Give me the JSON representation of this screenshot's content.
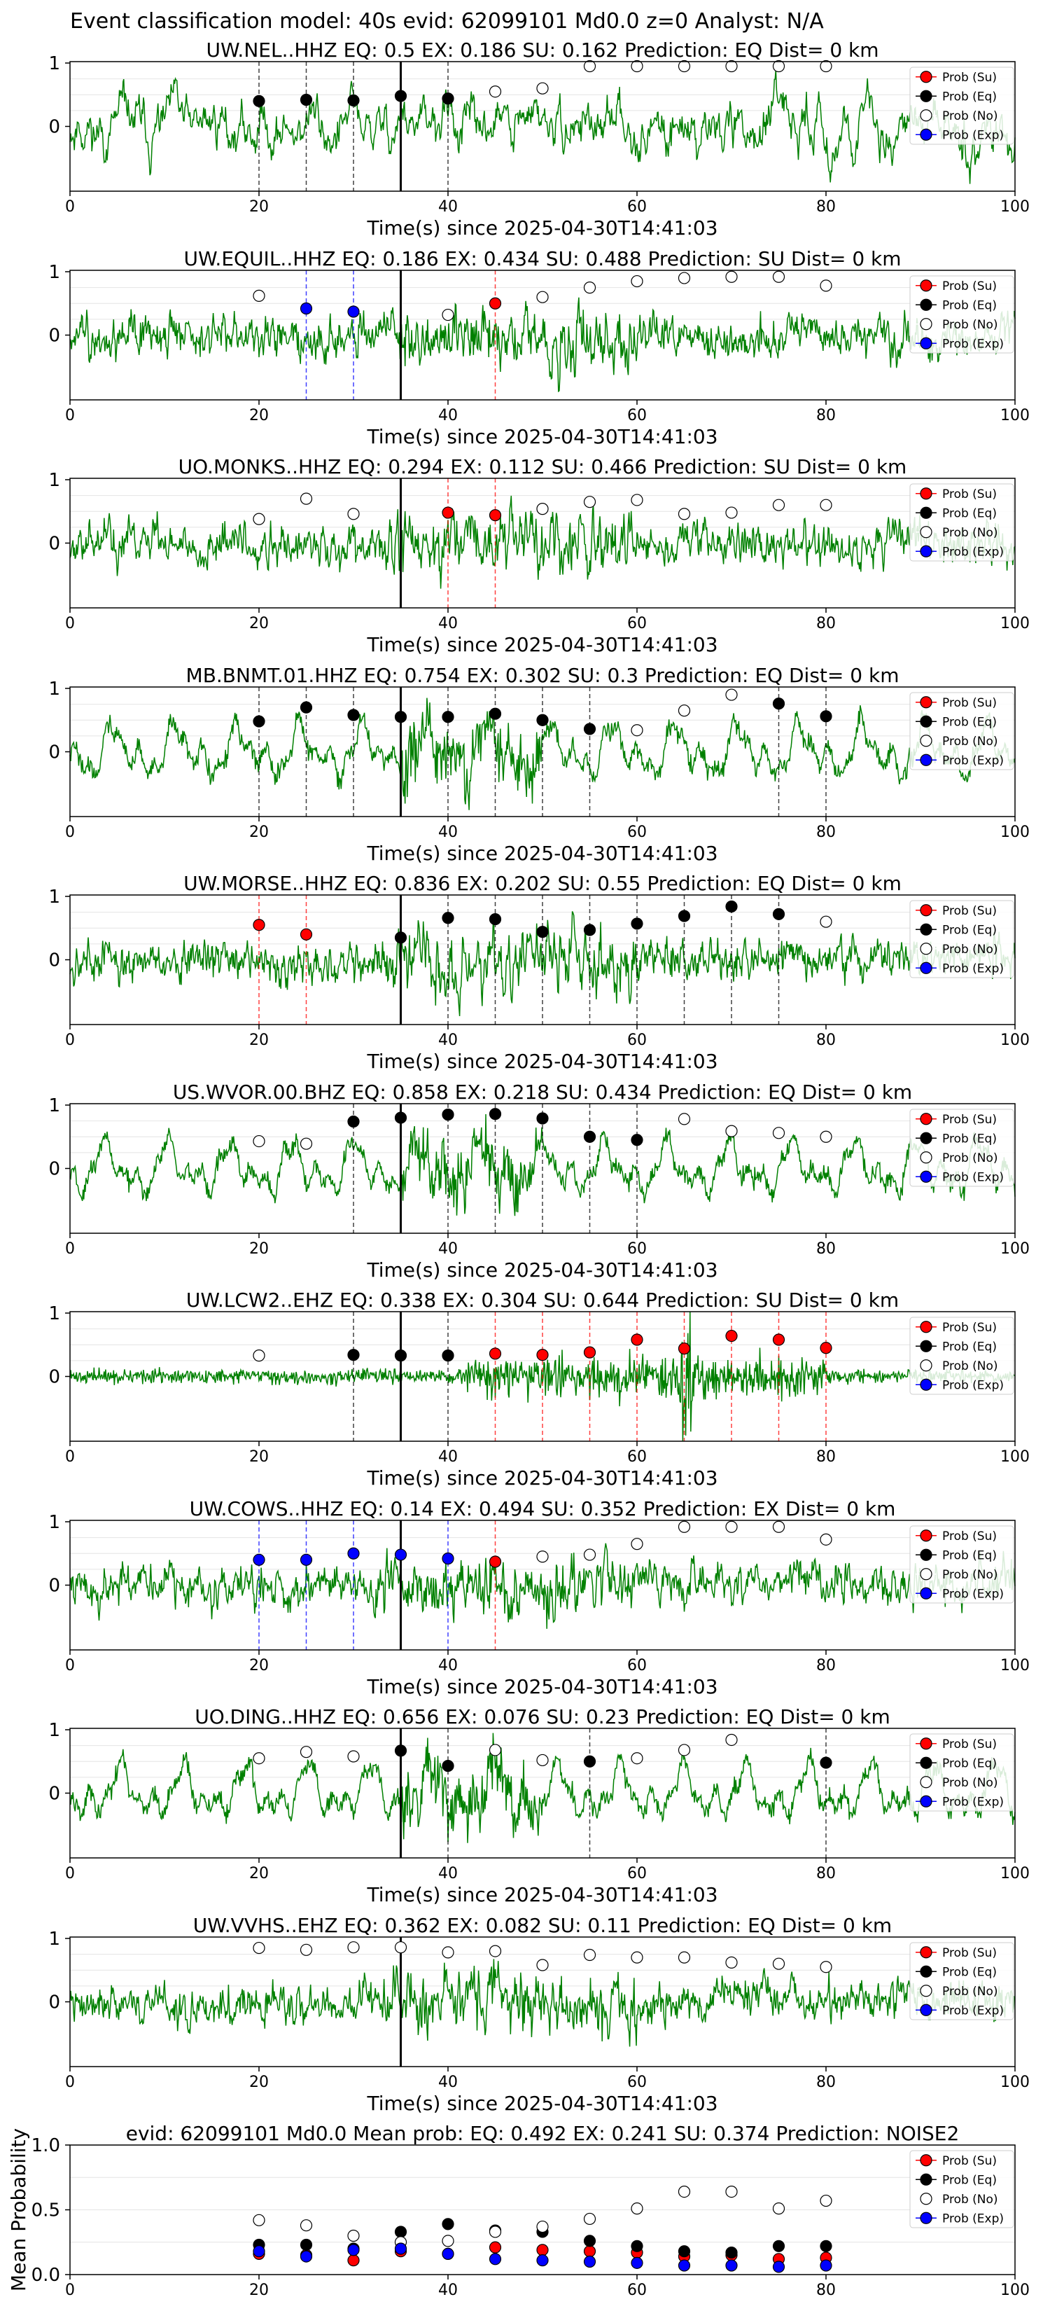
{
  "suptitle": "Event classification model: 40s evid: 62099101 Md0.0 z=0 Analyst: N/A",
  "xlabel": "Time(s) since 2025-04-30T14:41:03",
  "legend": [
    "Prob (Su)",
    "Prob (Eq)",
    "Prob (No)",
    "Prob (Exp)"
  ],
  "colors": {
    "su": "#ff0000",
    "eq": "#000000",
    "no": "#ffffff",
    "exp": "#0000ff",
    "trace": "#008000",
    "pick": "#000000"
  },
  "chart_data": [
    {
      "type": "line",
      "station": "UW.NEL..HHZ",
      "title": "UW.NEL..HHZ   EQ: 0.5   EX: 0.186   SU: 0.162   Prediction: EQ    Dist= 0 km",
      "xlim": [
        0,
        100
      ],
      "yticks": [
        "1",
        "0"
      ],
      "xticks": [
        "0",
        "20",
        "40",
        "60",
        "80",
        "100"
      ],
      "pick_time": 35,
      "style": "mixed",
      "seed": 11,
      "points": [
        [
          20,
          "eq",
          0.4
        ],
        [
          25,
          "eq",
          0.42
        ],
        [
          30,
          "eq",
          0.41
        ],
        [
          35,
          "eq",
          0.48
        ],
        [
          40,
          "eq",
          0.44
        ],
        [
          45,
          "no",
          0.55
        ],
        [
          50,
          "no",
          0.6
        ],
        [
          55,
          "no",
          0.95
        ],
        [
          60,
          "no",
          0.95
        ],
        [
          65,
          "no",
          0.95
        ],
        [
          70,
          "no",
          0.95
        ],
        [
          75,
          "no",
          0.95
        ],
        [
          80,
          "no",
          0.95
        ]
      ]
    },
    {
      "type": "line",
      "station": "UW.EQUIL..HHZ",
      "title": "UW.EQUIL..HHZ   EQ: 0.186  EX: 0.434  SU: 0.488   Prediction: SU    Dist= 0 km",
      "xlim": [
        0,
        100
      ],
      "yticks": [
        "1",
        "0"
      ],
      "xticks": [
        "0",
        "20",
        "40",
        "60",
        "80",
        "100"
      ],
      "pick_time": 35,
      "style": "noise",
      "seed": 23,
      "points": [
        [
          20,
          "no",
          0.62
        ],
        [
          25,
          "exp",
          0.42
        ],
        [
          30,
          "exp",
          0.37
        ],
        [
          40,
          "no",
          0.32
        ],
        [
          45,
          "su",
          0.5
        ],
        [
          50,
          "no",
          0.6
        ],
        [
          55,
          "no",
          0.75
        ],
        [
          60,
          "no",
          0.85
        ],
        [
          65,
          "no",
          0.9
        ],
        [
          70,
          "no",
          0.92
        ],
        [
          75,
          "no",
          0.92
        ],
        [
          80,
          "no",
          0.78
        ]
      ]
    },
    {
      "type": "line",
      "station": "UO.MONKS..HHZ",
      "title": "UO.MONKS..HHZ   EQ: 0.294  EX: 0.112  SU: 0.466   Prediction: SU    Dist= 0 km",
      "xlim": [
        0,
        100
      ],
      "yticks": [
        "1",
        "0"
      ],
      "xticks": [
        "0",
        "20",
        "40",
        "60",
        "80",
        "100"
      ],
      "pick_time": 35,
      "style": "noise",
      "seed": 37,
      "points": [
        [
          20,
          "no",
          0.38
        ],
        [
          25,
          "no",
          0.7
        ],
        [
          30,
          "no",
          0.46
        ],
        [
          40,
          "su",
          0.48
        ],
        [
          45,
          "su",
          0.44
        ],
        [
          50,
          "no",
          0.54
        ],
        [
          55,
          "no",
          0.65
        ],
        [
          60,
          "no",
          0.68
        ],
        [
          65,
          "no",
          0.46
        ],
        [
          70,
          "no",
          0.48
        ],
        [
          75,
          "no",
          0.6
        ],
        [
          80,
          "no",
          0.6
        ]
      ]
    },
    {
      "type": "line",
      "station": "MB.BNMT.01.HHZ",
      "title": "MB.BNMT.01.HHZ   EQ: 0.754  EX: 0.302  SU: 0.3   Prediction: EQ    Dist= 0 km",
      "xlim": [
        0,
        100
      ],
      "yticks": [
        "1",
        "0"
      ],
      "xticks": [
        "0",
        "20",
        "40",
        "60",
        "80",
        "100"
      ],
      "pick_time": 35,
      "style": "wave",
      "seed": 41,
      "points": [
        [
          20,
          "eq",
          0.48
        ],
        [
          25,
          "eq",
          0.7
        ],
        [
          30,
          "eq",
          0.58
        ],
        [
          35,
          "eq",
          0.55
        ],
        [
          40,
          "eq",
          0.55
        ],
        [
          45,
          "eq",
          0.6
        ],
        [
          50,
          "eq",
          0.5
        ],
        [
          55,
          "eq",
          0.36
        ],
        [
          60,
          "no",
          0.34
        ],
        [
          65,
          "no",
          0.65
        ],
        [
          70,
          "no",
          0.9
        ],
        [
          75,
          "eq",
          0.76
        ],
        [
          80,
          "eq",
          0.56
        ]
      ]
    },
    {
      "type": "line",
      "station": "UW.MORSE..HHZ",
      "title": "UW.MORSE..HHZ   EQ: 0.836  EX: 0.202  SU: 0.55   Prediction: EQ    Dist= 0 km",
      "xlim": [
        0,
        100
      ],
      "yticks": [
        "1",
        "0"
      ],
      "xticks": [
        "0",
        "20",
        "40",
        "60",
        "80",
        "100"
      ],
      "pick_time": 35,
      "style": "noise",
      "seed": 53,
      "points": [
        [
          20,
          "su",
          0.55
        ],
        [
          25,
          "su",
          0.4
        ],
        [
          35,
          "eq",
          0.35
        ],
        [
          40,
          "eq",
          0.66
        ],
        [
          45,
          "eq",
          0.64
        ],
        [
          50,
          "eq",
          0.44
        ],
        [
          55,
          "eq",
          0.47
        ],
        [
          60,
          "eq",
          0.57
        ],
        [
          65,
          "eq",
          0.69
        ],
        [
          70,
          "eq",
          0.84
        ],
        [
          75,
          "eq",
          0.72
        ],
        [
          80,
          "no",
          0.6
        ]
      ]
    },
    {
      "type": "line",
      "station": "US.WVOR.00.BHZ",
      "title": "US.WVOR.00.BHZ   EQ: 0.858  EX: 0.218  SU: 0.434   Prediction: EQ    Dist= 0 km",
      "xlim": [
        0,
        100
      ],
      "yticks": [
        "1",
        "0"
      ],
      "xticks": [
        "0",
        "20",
        "40",
        "60",
        "80",
        "100"
      ],
      "pick_time": 35,
      "style": "wave",
      "seed": 67,
      "points": [
        [
          20,
          "no",
          0.43
        ],
        [
          25,
          "no",
          0.39
        ],
        [
          30,
          "eq",
          0.74
        ],
        [
          35,
          "eq",
          0.8
        ],
        [
          40,
          "eq",
          0.85
        ],
        [
          45,
          "eq",
          0.86
        ],
        [
          50,
          "eq",
          0.79
        ],
        [
          55,
          "eq",
          0.5
        ],
        [
          60,
          "eq",
          0.45
        ],
        [
          65,
          "no",
          0.78
        ],
        [
          70,
          "no",
          0.59
        ],
        [
          75,
          "no",
          0.56
        ],
        [
          80,
          "no",
          0.5
        ]
      ]
    },
    {
      "type": "line",
      "station": "UW.LCW2..EHZ",
      "title": "UW.LCW2..EHZ   EQ: 0.338  EX: 0.304  SU: 0.644   Prediction: SU    Dist= 0 km",
      "xlim": [
        0,
        100
      ],
      "yticks": [
        "1",
        "0"
      ],
      "xticks": [
        "0",
        "20",
        "40",
        "60",
        "80",
        "100"
      ],
      "pick_time": 35,
      "style": "burst",
      "seed": 71,
      "points": [
        [
          20,
          "no",
          0.33
        ],
        [
          30,
          "eq",
          0.34
        ],
        [
          35,
          "eq",
          0.33
        ],
        [
          40,
          "eq",
          0.33
        ],
        [
          45,
          "su",
          0.36
        ],
        [
          50,
          "su",
          0.34
        ],
        [
          55,
          "su",
          0.38
        ],
        [
          60,
          "su",
          0.58
        ],
        [
          65,
          "su",
          0.44
        ],
        [
          70,
          "su",
          0.64
        ],
        [
          75,
          "su",
          0.58
        ],
        [
          80,
          "su",
          0.45
        ]
      ]
    },
    {
      "type": "line",
      "station": "UW.COWS..HHZ",
      "title": "UW.COWS..HHZ   EQ: 0.14  EX: 0.494  SU: 0.352   Prediction: EX    Dist= 0 km",
      "xlim": [
        0,
        100
      ],
      "yticks": [
        "1",
        "0"
      ],
      "xticks": [
        "0",
        "20",
        "40",
        "60",
        "80",
        "100"
      ],
      "pick_time": 35,
      "style": "noise",
      "seed": 83,
      "points": [
        [
          20,
          "exp",
          0.4
        ],
        [
          25,
          "exp",
          0.4
        ],
        [
          30,
          "exp",
          0.5
        ],
        [
          35,
          "exp",
          0.48
        ],
        [
          40,
          "exp",
          0.42
        ],
        [
          45,
          "su",
          0.37
        ],
        [
          50,
          "no",
          0.45
        ],
        [
          55,
          "no",
          0.48
        ],
        [
          60,
          "no",
          0.65
        ],
        [
          65,
          "no",
          0.92
        ],
        [
          70,
          "no",
          0.92
        ],
        [
          75,
          "no",
          0.92
        ],
        [
          80,
          "no",
          0.72
        ]
      ]
    },
    {
      "type": "line",
      "station": "UO.DING..HHZ",
      "title": "UO.DING..HHZ   EQ: 0.656  EX: 0.076  SU: 0.23   Prediction: EQ    Dist= 0 km",
      "xlim": [
        0,
        100
      ],
      "yticks": [
        "1",
        "0"
      ],
      "xticks": [
        "0",
        "20",
        "40",
        "60",
        "80",
        "100"
      ],
      "pick_time": 35,
      "style": "wave",
      "seed": 97,
      "points": [
        [
          20,
          "no",
          0.55
        ],
        [
          25,
          "no",
          0.65
        ],
        [
          30,
          "no",
          0.58
        ],
        [
          35,
          "eq",
          0.67
        ],
        [
          40,
          "eq",
          0.43
        ],
        [
          45,
          "no",
          0.68
        ],
        [
          50,
          "no",
          0.52
        ],
        [
          55,
          "eq",
          0.5
        ],
        [
          60,
          "no",
          0.55
        ],
        [
          65,
          "no",
          0.68
        ],
        [
          70,
          "no",
          0.84
        ],
        [
          80,
          "eq",
          0.48
        ]
      ]
    },
    {
      "type": "line",
      "station": "UW.VVHS..EHZ",
      "title": "UW.VVHS..EHZ   EQ: 0.362  EX: 0.082  SU: 0.11   Prediction: EQ    Dist= 0 km",
      "xlim": [
        0,
        100
      ],
      "yticks": [
        "1",
        "0"
      ],
      "xticks": [
        "0",
        "20",
        "40",
        "60",
        "80",
        "100"
      ],
      "pick_time": 35,
      "style": "noise",
      "seed": 101,
      "points": [
        [
          20,
          "no",
          0.85
        ],
        [
          25,
          "no",
          0.82
        ],
        [
          30,
          "no",
          0.86
        ],
        [
          35,
          "no",
          0.86
        ],
        [
          40,
          "no",
          0.78
        ],
        [
          45,
          "no",
          0.8
        ],
        [
          50,
          "no",
          0.58
        ],
        [
          55,
          "no",
          0.74
        ],
        [
          60,
          "no",
          0.7
        ],
        [
          65,
          "no",
          0.7
        ],
        [
          70,
          "no",
          0.62
        ],
        [
          75,
          "no",
          0.6
        ],
        [
          80,
          "no",
          0.55
        ]
      ]
    },
    {
      "type": "scatter",
      "title": "evid: 62099101  Md0.0    Mean prob:   EQ: 0.492   EX: 0.241   SU: 0.374   Prediction: NOISE2",
      "ylabel": "Mean Probability",
      "xlim": [
        0,
        100
      ],
      "ylim": [
        0,
        1
      ],
      "yticks": [
        "1.0",
        "0.5",
        "0.0"
      ],
      "xticks": [
        "0",
        "20",
        "40",
        "60",
        "80",
        "100"
      ],
      "x": [
        20,
        25,
        30,
        35,
        40,
        45,
        50,
        55,
        60,
        65,
        70,
        75,
        80
      ],
      "series": [
        {
          "name": "Prob (Su)",
          "key": "su",
          "values": [
            0.16,
            0.15,
            0.11,
            0.18,
            0.16,
            0.21,
            0.19,
            0.18,
            0.17,
            0.14,
            0.15,
            0.12,
            0.13
          ]
        },
        {
          "name": "Prob (Eq)",
          "key": "eq",
          "values": [
            0.23,
            0.23,
            0.2,
            0.33,
            0.39,
            0.34,
            0.33,
            0.26,
            0.22,
            0.18,
            0.17,
            0.22,
            0.22
          ]
        },
        {
          "name": "Prob (No)",
          "key": "no",
          "values": [
            0.42,
            0.38,
            0.3,
            0.25,
            0.26,
            0.33,
            0.37,
            0.43,
            0.51,
            0.64,
            0.64,
            0.51,
            0.57
          ]
        },
        {
          "name": "Prob (Exp)",
          "key": "exp",
          "values": [
            0.18,
            0.14,
            0.19,
            0.2,
            0.16,
            0.12,
            0.11,
            0.1,
            0.09,
            0.07,
            0.07,
            0.06,
            0.07
          ]
        }
      ]
    }
  ]
}
